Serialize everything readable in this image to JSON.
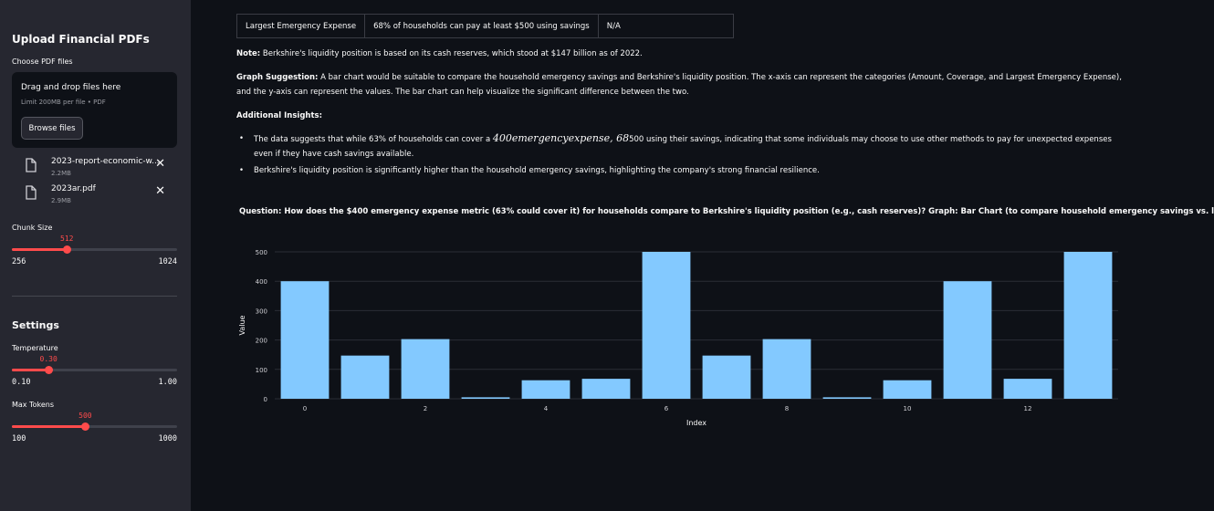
{
  "sidebar": {
    "upload_title": "Upload Financial PDFs",
    "choose_label": "Choose PDF files",
    "dropzone": {
      "title": "Drag and drop files here",
      "limit": "Limit 200MB per file • PDF",
      "browse_label": "Browse files"
    },
    "files": [
      {
        "name": "2023-report-economic-w...",
        "size": "2.2MB"
      },
      {
        "name": "2023ar.pdf",
        "size": "2.9MB"
      }
    ],
    "chunk_size": {
      "label": "Chunk Size",
      "value": "512",
      "min": "256",
      "max": "1024",
      "fraction": 0.333
    },
    "settings_heading": "Settings",
    "temperature": {
      "label": "Temperature",
      "value": "0.30",
      "min": "0.10",
      "max": "1.00",
      "fraction": 0.222
    },
    "max_tokens": {
      "label": "Max Tokens",
      "value": "500",
      "min": "100",
      "max": "1000",
      "fraction": 0.444
    }
  },
  "main": {
    "table_row": [
      "Largest Emergency Expense",
      "68% of households can pay at least $500 using savings",
      "N/A"
    ],
    "note_label": "Note:",
    "note_text": " Berkshire's liquidity position is based on its cash reserves, which stood at $147 billion as of 2022.",
    "graph_label": "Graph Suggestion:",
    "graph_text": " A bar chart would be suitable to compare the household emergency savings and Berkshire's liquidity position. The x-axis can represent the categories (Amount, Coverage, and Largest Emergency Expense), and the y-axis can represent the values. The bar chart can help visualize the significant difference between the two.",
    "insights_label": "Additional Insights:",
    "bullet1_a": "The data suggests that while 63% of households can cover a ",
    "bullet1_math": "400emergencyexpense, 68",
    "bullet1_b": "500 using their savings, indicating that some individuals may choose to use other methods to pay for unexpected expenses even if they have cash savings available.",
    "bullet2": "Berkshire's liquidity position is significantly higher than the household emergency savings, highlighting the company's strong financial resilience.",
    "question": "Question: How does the $400 emergency expense metric (63% could cover it) for households compare to Berkshire's liquidity position (e.g., cash reserves)?  Graph: Bar Chart (to compare household emergency savings vs. l"
  },
  "chart_data": {
    "type": "bar",
    "x": [
      0,
      1,
      2,
      3,
      4,
      5,
      6,
      7,
      8,
      9,
      10,
      11,
      12,
      13
    ],
    "values": [
      400,
      147,
      203,
      5,
      63,
      68,
      500,
      147,
      203,
      5,
      63,
      400,
      68,
      500
    ],
    "xlabel": "Index",
    "ylabel": "Value",
    "ylim": [
      0,
      500
    ],
    "yticks": [
      0,
      100,
      200,
      300,
      400,
      500
    ],
    "xticks": [
      0,
      2,
      4,
      6,
      8,
      10,
      12
    ],
    "bar_color": "#83c9ff",
    "grid": true
  },
  "colors": {
    "accent": "#ff4b4b",
    "sidebar_bg": "#262730",
    "main_bg": "#0e1117"
  }
}
